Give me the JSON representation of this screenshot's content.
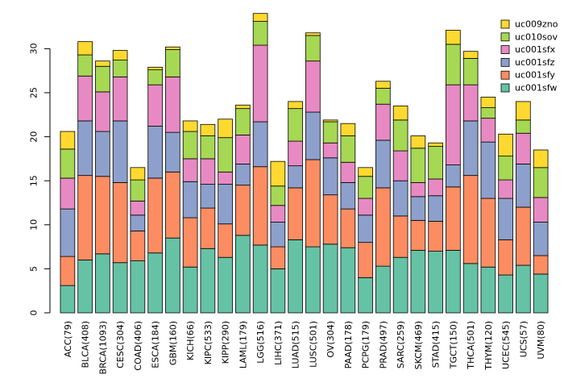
{
  "chart_data": {
    "type": "bar",
    "stacked": true,
    "title": "",
    "xlabel": "",
    "ylabel": "",
    "ylim": [
      0,
      34
    ],
    "yticks": [
      0,
      5,
      10,
      15,
      20,
      25,
      30
    ],
    "legend_position": "top-right",
    "categories": [
      "ACC(79)",
      "BLCA(408)",
      "BRCA(1093)",
      "CESC(304)",
      "COAD(406)",
      "ESCA(184)",
      "GBM(160)",
      "KICH(66)",
      "KIPC(533)",
      "KIPP(290)",
      "LAML(179)",
      "LGG(516)",
      "LIHC(371)",
      "LUAD(515)",
      "LUSC(501)",
      "OV(304)",
      "PAAD(178)",
      "PCPG(179)",
      "PRAD(497)",
      "SARC(259)",
      "SKCM(469)",
      "STAD(415)",
      "TGCT(150)",
      "THCA(501)",
      "THYM(120)",
      "UCEC(545)",
      "UCS(57)",
      "UVM(80)"
    ],
    "series": [
      {
        "name": "uc001sfw",
        "color": "#66c2a5",
        "values": [
          3.1,
          6.0,
          6.7,
          5.7,
          5.9,
          6.8,
          8.5,
          5.2,
          7.3,
          6.3,
          8.8,
          7.7,
          5.0,
          8.3,
          7.5,
          7.8,
          7.4,
          4.0,
          5.3,
          6.3,
          7.1,
          7.0,
          7.1,
          5.6,
          5.2,
          4.3,
          5.4,
          4.4
        ]
      },
      {
        "name": "uc001sfy",
        "color": "#fc8d62",
        "values": [
          3.3,
          9.6,
          8.8,
          9.1,
          3.4,
          8.5,
          7.5,
          5.6,
          4.6,
          3.8,
          5.7,
          8.9,
          2.5,
          5.9,
          9.9,
          5.6,
          4.4,
          4.0,
          8.9,
          4.7,
          3.4,
          3.4,
          7.2,
          10.0,
          7.8,
          4.0,
          6.6,
          2.1
        ]
      },
      {
        "name": "uc001sfz",
        "color": "#8da0cb",
        "values": [
          5.4,
          6.2,
          5.1,
          7.0,
          1.8,
          5.9,
          4.5,
          4.1,
          2.7,
          4.5,
          2.4,
          5.1,
          2.8,
          2.5,
          5.4,
          4.2,
          3.0,
          3.1,
          5.4,
          4.0,
          2.7,
          2.9,
          2.5,
          6.2,
          6.4,
          4.7,
          4.9,
          3.8
        ]
      },
      {
        "name": "uc001sfx",
        "color": "#e78ac3",
        "values": [
          3.5,
          5.1,
          4.5,
          5.0,
          1.6,
          4.7,
          6.3,
          2.6,
          2.9,
          1.4,
          3.3,
          8.7,
          1.9,
          2.8,
          5.8,
          1.7,
          2.3,
          1.9,
          4.1,
          3.4,
          1.6,
          1.9,
          9.1,
          4.1,
          2.7,
          2.1,
          3.5,
          2.8
        ]
      },
      {
        "name": "uc010sov",
        "color": "#a6d854",
        "values": [
          3.3,
          2.4,
          2.9,
          1.9,
          2.4,
          1.7,
          3.1,
          3.1,
          2.6,
          3.9,
          3.0,
          2.7,
          2.2,
          3.7,
          2.9,
          2.4,
          3.0,
          2.5,
          1.8,
          3.5,
          3.9,
          3.7,
          4.6,
          3.0,
          1.2,
          2.7,
          1.5,
          3.4
        ]
      },
      {
        "name": "uc009zno",
        "color": "#ffd92f",
        "values": [
          2.0,
          1.5,
          0.6,
          1.1,
          1.4,
          0.3,
          0.3,
          1.2,
          1.3,
          2.1,
          0.4,
          0.9,
          2.8,
          0.8,
          0.3,
          0.2,
          1.4,
          1.0,
          0.8,
          1.6,
          1.4,
          0.4,
          1.6,
          0.8,
          1.2,
          2.5,
          2.1,
          2.0
        ]
      }
    ]
  }
}
